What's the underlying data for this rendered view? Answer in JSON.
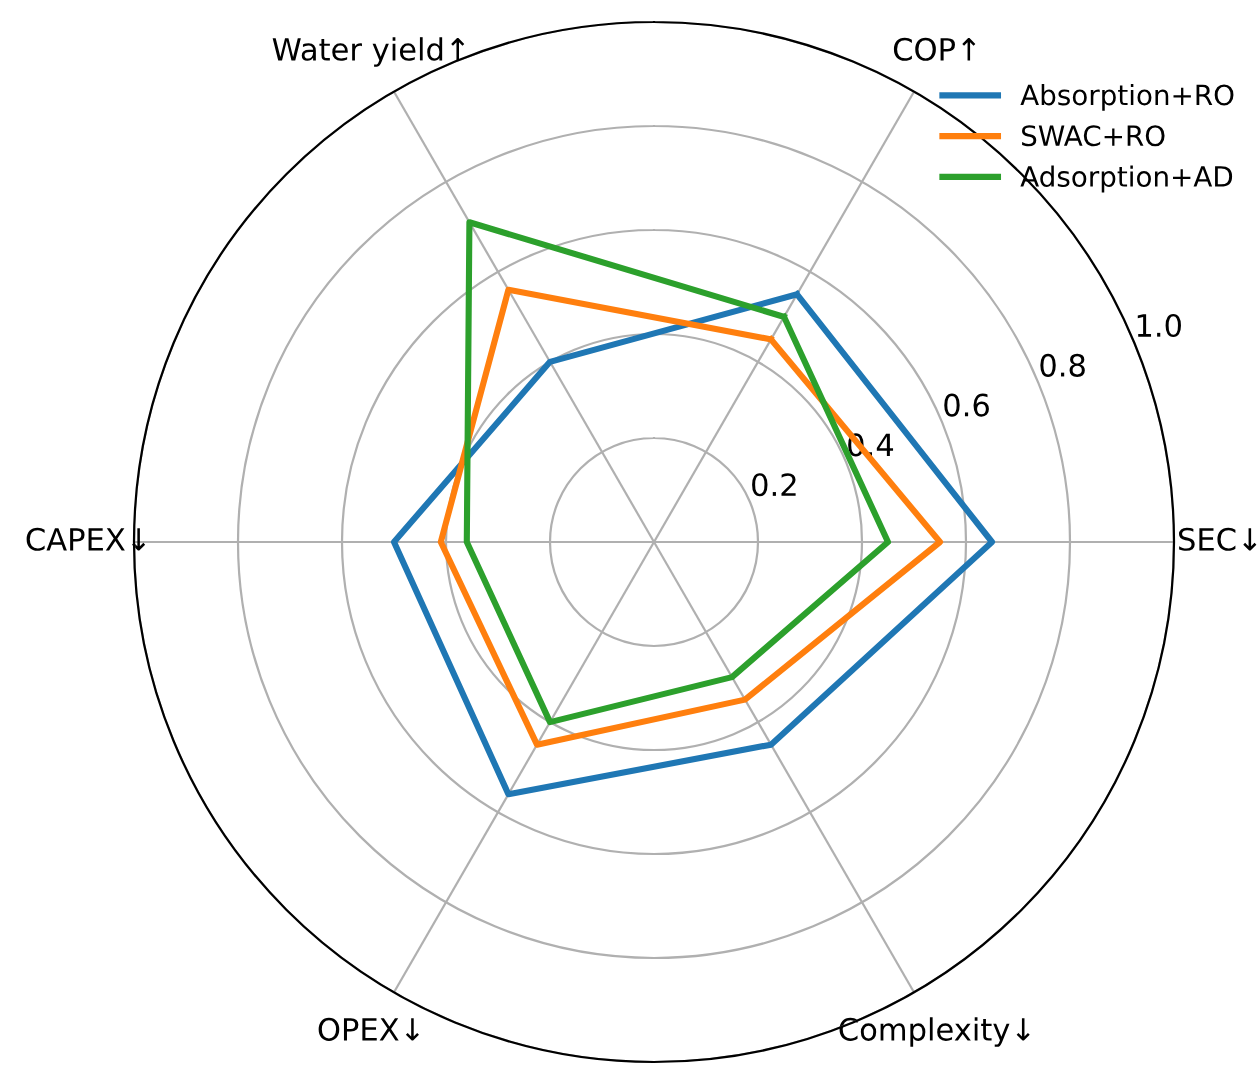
{
  "chart_data": {
    "type": "radar",
    "categories": [
      "COP↑",
      "SEC↓",
      "Complexity↓",
      "OPEX↓",
      "CAPEX↓",
      "Water yield↑"
    ],
    "series": [
      {
        "name": "Absorption+RO",
        "color": "#1f77b4",
        "values": [
          0.55,
          0.65,
          0.45,
          0.56,
          0.5,
          0.4
        ]
      },
      {
        "name": "SWAC+RO",
        "color": "#ff7f0e",
        "values": [
          0.45,
          0.55,
          0.35,
          0.45,
          0.41,
          0.56
        ]
      },
      {
        "name": "Adsorption+AD",
        "color": "#2ca02c",
        "values": [
          0.5,
          0.45,
          0.3,
          0.4,
          0.36,
          0.71
        ]
      }
    ],
    "ylim": [
      0,
      1.0
    ],
    "yticks": [
      0.2,
      0.4,
      0.6,
      0.8,
      {
        "value": 1,
        "label": "1.0"
      }
    ],
    "grid": true,
    "legend": "top right",
    "marker": "none",
    "line_style": "solid"
  }
}
